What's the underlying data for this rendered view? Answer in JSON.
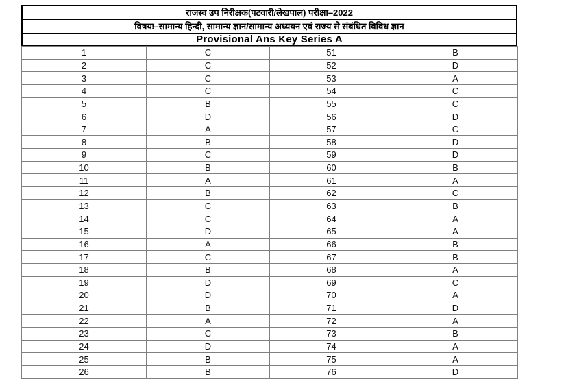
{
  "document": {
    "title_line1": "राजस्व उप निरीक्षक(पटवारी/लेखपाल) परीक्षा–2022",
    "title_line2": "विषयः–सामान्य हिन्दी, सामान्य ज्ञान/सामान्य अध्ययन एवं राज्य से संबंधित विविध ज्ञान",
    "title_line3": "Provisional Ans Key Series A"
  },
  "answer_table": {
    "columns": [
      "question_number_left",
      "answer_left",
      "question_number_right",
      "answer_right"
    ],
    "rows": [
      [
        "1",
        "C",
        "51",
        "B"
      ],
      [
        "2",
        "C",
        "52",
        "D"
      ],
      [
        "3",
        "C",
        "53",
        "A"
      ],
      [
        "4",
        "C",
        "54",
        "C"
      ],
      [
        "5",
        "B",
        "55",
        "C"
      ],
      [
        "6",
        "D",
        "56",
        "D"
      ],
      [
        "7",
        "A",
        "57",
        "C"
      ],
      [
        "8",
        "B",
        "58",
        "D"
      ],
      [
        "9",
        "C",
        "59",
        "D"
      ],
      [
        "10",
        "B",
        "60",
        "B"
      ],
      [
        "11",
        "A",
        "61",
        "A"
      ],
      [
        "12",
        "B",
        "62",
        "C"
      ],
      [
        "13",
        "C",
        "63",
        "B"
      ],
      [
        "14",
        "C",
        "64",
        "A"
      ],
      [
        "15",
        "D",
        "65",
        "A"
      ],
      [
        "16",
        "A",
        "66",
        "B"
      ],
      [
        "17",
        "C",
        "67",
        "B"
      ],
      [
        "18",
        "B",
        "68",
        "A"
      ],
      [
        "19",
        "D",
        "69",
        "C"
      ],
      [
        "20",
        "D",
        "70",
        "A"
      ],
      [
        "21",
        "B",
        "71",
        "D"
      ],
      [
        "22",
        "A",
        "72",
        "A"
      ],
      [
        "23",
        "C",
        "73",
        "B"
      ],
      [
        "24",
        "D",
        "74",
        "A"
      ],
      [
        "25",
        "B",
        "75",
        "A"
      ],
      [
        "26",
        "B",
        "76",
        "D"
      ]
    ]
  },
  "colors": {
    "header_border": "#000000",
    "grid_border": "#808080",
    "text": "#111111",
    "background": "#ffffff"
  }
}
